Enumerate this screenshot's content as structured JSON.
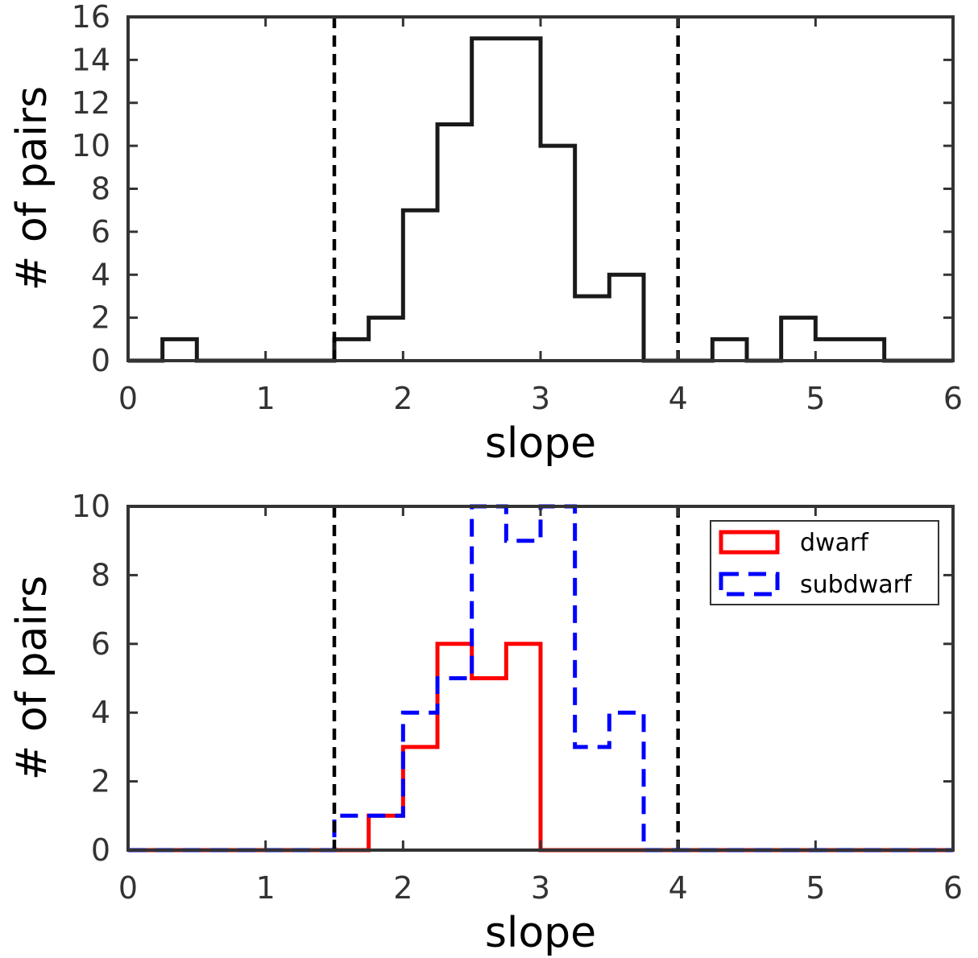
{
  "chart_data": [
    {
      "type": "histogram",
      "xlabel": "slope",
      "ylabel": "# of pairs",
      "xlim": [
        0,
        6
      ],
      "ylim": [
        0,
        16
      ],
      "xticks": [
        0,
        1,
        2,
        3,
        4,
        5,
        6
      ],
      "yticks": [
        0,
        2,
        4,
        6,
        8,
        10,
        12,
        14,
        16
      ],
      "bin_width": 0.25,
      "bin_edges": [
        0,
        0.25,
        0.5,
        0.75,
        1.0,
        1.25,
        1.5,
        1.75,
        2.0,
        2.25,
        2.5,
        2.75,
        3.0,
        3.25,
        3.5,
        3.75,
        4.0,
        4.25,
        4.5,
        4.75,
        5.0,
        5.25,
        5.5,
        5.75,
        6.0
      ],
      "series": [
        {
          "name": "",
          "color": "#1a1a1a",
          "style": "solid",
          "values": [
            0,
            1,
            0,
            0,
            0,
            0,
            1,
            2,
            7,
            11,
            15,
            15,
            10,
            3,
            4,
            0,
            0,
            1,
            0,
            2,
            1,
            1,
            0,
            0
          ]
        }
      ],
      "vlines": [
        1.5,
        4.0
      ],
      "legend": null
    },
    {
      "type": "histogram",
      "xlabel": "slope",
      "ylabel": "# of pairs",
      "xlim": [
        0,
        6
      ],
      "ylim": [
        0,
        10
      ],
      "xticks": [
        0,
        1,
        2,
        3,
        4,
        5,
        6
      ],
      "yticks": [
        0,
        2,
        4,
        6,
        8,
        10
      ],
      "bin_width": 0.25,
      "bin_edges": [
        0,
        0.25,
        0.5,
        0.75,
        1.0,
        1.25,
        1.5,
        1.75,
        2.0,
        2.25,
        2.5,
        2.75,
        3.0,
        3.25,
        3.5,
        3.75,
        4.0,
        4.25,
        4.5,
        4.75,
        5.0,
        5.25,
        5.5,
        5.75,
        6.0
      ],
      "series": [
        {
          "name": "dwarf",
          "color": "#ff0000",
          "style": "solid",
          "values": [
            0,
            0,
            0,
            0,
            0,
            0,
            0,
            1,
            3,
            6,
            5,
            6,
            0,
            0,
            0,
            0,
            0,
            0,
            0,
            0,
            0,
            0,
            0,
            0
          ]
        },
        {
          "name": "subdwarf",
          "color": "#0000ff",
          "style": "dashed",
          "values": [
            0,
            0,
            0,
            0,
            0,
            0,
            1,
            1,
            4,
            5,
            10,
            9,
            10,
            3,
            4,
            0,
            0,
            0,
            0,
            0,
            0,
            0,
            0,
            0
          ]
        }
      ],
      "vlines": [
        1.5,
        4.0
      ],
      "legend": {
        "placement": "top-right",
        "entries": [
          "dwarf",
          "subdwarf"
        ]
      }
    }
  ]
}
